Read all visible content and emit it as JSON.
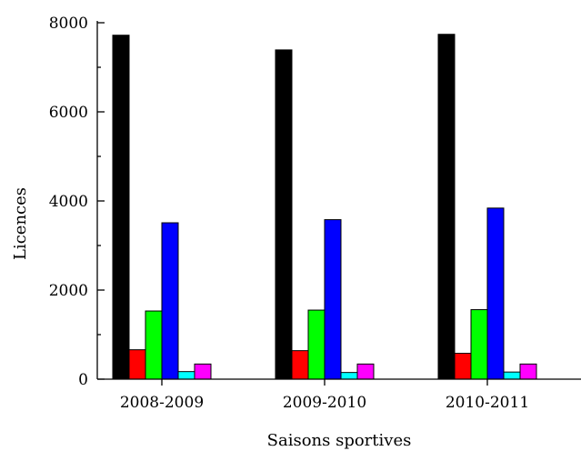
{
  "chart_data": {
    "type": "bar",
    "categories": [
      "2008-2009",
      "2009-2010",
      "2010-2011"
    ],
    "xlabel": "Saisons sportives",
    "ylabel": "Licences",
    "ylim": [
      0,
      8000
    ],
    "yticks": [
      0,
      2000,
      4000,
      6000,
      8000
    ],
    "grid": false,
    "series": [
      {
        "values": [
          7720,
          7390,
          7740
        ],
        "color": "#000000"
      },
      {
        "values": [
          660,
          640,
          580
        ],
        "color": "#ff0000"
      },
      {
        "values": [
          1530,
          1550,
          1560
        ],
        "color": "#00ff00"
      },
      {
        "values": [
          3510,
          3580,
          3840
        ],
        "color": "#0000ff"
      },
      {
        "values": [
          170,
          150,
          160
        ],
        "color": "#00ffff"
      },
      {
        "values": [
          340,
          340,
          340
        ],
        "color": "#ff00ff"
      }
    ]
  }
}
